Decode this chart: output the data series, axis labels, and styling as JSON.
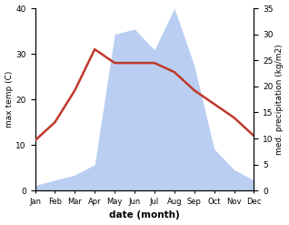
{
  "months": [
    "Jan",
    "Feb",
    "Mar",
    "Apr",
    "May",
    "Jun",
    "Jul",
    "Aug",
    "Sep",
    "Oct",
    "Nov",
    "Dec"
  ],
  "temperature": [
    11,
    15,
    22,
    31,
    28,
    28,
    28,
    26,
    22,
    19,
    16,
    12
  ],
  "precipitation": [
    1,
    2,
    3,
    5,
    30,
    31,
    27,
    35,
    24,
    8,
    4,
    2
  ],
  "temp_color": "#c0392b",
  "precip_color_fill": "#aec6f0",
  "temp_ylim": [
    0,
    40
  ],
  "precip_ylim": [
    0,
    35
  ],
  "temp_yticks": [
    0,
    10,
    20,
    30,
    40
  ],
  "precip_yticks": [
    0,
    5,
    10,
    15,
    20,
    25,
    30,
    35
  ],
  "xlabel": "date (month)",
  "ylabel_left": "max temp (C)",
  "ylabel_right": "med. precipitation (kg/m2)",
  "figsize": [
    3.18,
    2.47
  ],
  "dpi": 100
}
